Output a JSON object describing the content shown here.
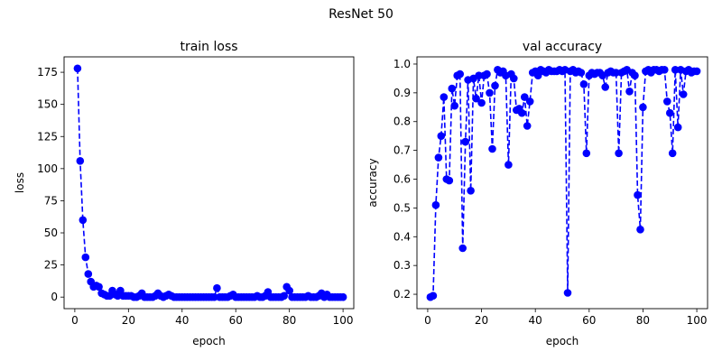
{
  "figure": {
    "title": "ResNet 50"
  },
  "chart_data": [
    {
      "type": "line",
      "title": "train loss",
      "xlabel": "epoch",
      "ylabel": "loss",
      "xlim": [
        -4,
        104
      ],
      "ylim": [
        -9,
        187
      ],
      "xticks": [
        0,
        20,
        40,
        60,
        80,
        100
      ],
      "yticks": [
        0,
        25,
        50,
        75,
        100,
        125,
        150,
        175
      ],
      "ytick_labels": [
        "0",
        "25",
        "50",
        "75",
        "100",
        "125",
        "150",
        "175"
      ],
      "grid": false,
      "legend": "none",
      "color": "#0000ff",
      "line_style": "dashed",
      "marker": "circle",
      "series": [
        {
          "x": [
            1,
            2,
            3,
            4,
            5,
            6,
            7,
            8,
            9,
            10,
            11,
            12,
            13,
            14,
            15,
            16,
            17,
            18,
            19,
            20,
            21,
            22,
            23,
            24,
            25,
            26,
            27,
            28,
            29,
            30,
            31,
            32,
            33,
            34,
            35,
            36,
            37,
            38,
            39,
            40,
            41,
            42,
            43,
            44,
            45,
            46,
            47,
            48,
            49,
            50,
            51,
            52,
            53,
            54,
            55,
            56,
            57,
            58,
            59,
            60,
            61,
            62,
            63,
            64,
            65,
            66,
            67,
            68,
            69,
            70,
            71,
            72,
            73,
            74,
            75,
            76,
            77,
            78,
            79,
            80,
            81,
            82,
            83,
            84,
            85,
            86,
            87,
            88,
            89,
            90,
            91,
            92,
            93,
            94,
            95,
            96,
            97,
            98,
            99,
            100
          ],
          "y": [
            178,
            106,
            60,
            31,
            18,
            12,
            8,
            9,
            8,
            3,
            2,
            1,
            1,
            5,
            2,
            1,
            5,
            1,
            1,
            1,
            1,
            0,
            0,
            1,
            3,
            0,
            0,
            0,
            0,
            1,
            3,
            1,
            0,
            1,
            2,
            1,
            0,
            0,
            0,
            0,
            0,
            0,
            0,
            0,
            0,
            0,
            0,
            0,
            0,
            0,
            0,
            0,
            7,
            0,
            0,
            0,
            0,
            1,
            2,
            0,
            0,
            0,
            0,
            0,
            0,
            0,
            0,
            1,
            0,
            0,
            1,
            4,
            0,
            0,
            0,
            0,
            0,
            1,
            8,
            5,
            0,
            0,
            0,
            0,
            0,
            0,
            1,
            0,
            0,
            0,
            1,
            3,
            0,
            2,
            0,
            0,
            0,
            0,
            0,
            0
          ]
        }
      ]
    },
    {
      "type": "line",
      "title": "val accuracy",
      "xlabel": "epoch",
      "ylabel": "accuracy",
      "xlim": [
        -4,
        104
      ],
      "ylim": [
        0.15,
        1.025
      ],
      "xticks": [
        0,
        20,
        40,
        60,
        80,
        100
      ],
      "yticks": [
        0.2,
        0.3,
        0.4,
        0.5,
        0.6,
        0.7,
        0.8,
        0.9,
        1.0
      ],
      "ytick_labels": [
        "0.2",
        "0.3",
        "0.4",
        "0.5",
        "0.6",
        "0.7",
        "0.8",
        "0.9",
        "1.0"
      ],
      "grid": false,
      "legend": "none",
      "color": "#0000ff",
      "line_style": "dashed",
      "marker": "circle",
      "series": [
        {
          "x": [
            1,
            2,
            3,
            4,
            5,
            6,
            7,
            8,
            9,
            10,
            11,
            12,
            13,
            14,
            15,
            16,
            17,
            18,
            19,
            20,
            21,
            22,
            23,
            24,
            25,
            26,
            27,
            28,
            29,
            30,
            31,
            32,
            33,
            34,
            35,
            36,
            37,
            38,
            39,
            40,
            41,
            42,
            43,
            44,
            45,
            46,
            47,
            48,
            49,
            50,
            51,
            52,
            53,
            54,
            55,
            56,
            57,
            58,
            59,
            60,
            61,
            62,
            63,
            64,
            65,
            66,
            67,
            68,
            69,
            70,
            71,
            72,
            73,
            74,
            75,
            76,
            77,
            78,
            79,
            80,
            81,
            82,
            83,
            84,
            85,
            86,
            87,
            88,
            89,
            90,
            91,
            92,
            93,
            94,
            95,
            96,
            97,
            98,
            99,
            100
          ],
          "y": [
            0.19,
            0.195,
            0.51,
            0.675,
            0.75,
            0.885,
            0.6,
            0.595,
            0.915,
            0.855,
            0.96,
            0.965,
            0.36,
            0.73,
            0.945,
            0.56,
            0.95,
            0.88,
            0.96,
            0.865,
            0.96,
            0.965,
            0.9,
            0.705,
            0.925,
            0.98,
            0.97,
            0.975,
            0.96,
            0.65,
            0.965,
            0.95,
            0.84,
            0.845,
            0.83,
            0.885,
            0.785,
            0.87,
            0.97,
            0.975,
            0.96,
            0.98,
            0.975,
            0.97,
            0.98,
            0.975,
            0.975,
            0.975,
            0.98,
            0.975,
            0.98,
            0.205,
            0.975,
            0.98,
            0.97,
            0.975,
            0.97,
            0.93,
            0.69,
            0.96,
            0.97,
            0.965,
            0.97,
            0.97,
            0.96,
            0.92,
            0.97,
            0.975,
            0.97,
            0.97,
            0.69,
            0.97,
            0.975,
            0.98,
            0.905,
            0.97,
            0.96,
            0.545,
            0.425,
            0.85,
            0.975,
            0.98,
            0.97,
            0.98,
            0.98,
            0.975,
            0.98,
            0.98,
            0.87,
            0.83,
            0.69,
            0.98,
            0.78,
            0.98,
            0.895,
            0.975,
            0.98,
            0.97,
            0.975,
            0.975
          ]
        }
      ]
    }
  ]
}
